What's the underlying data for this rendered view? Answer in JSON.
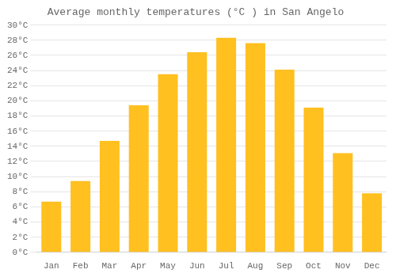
{
  "chart_data": {
    "type": "bar",
    "title": "Average monthly temperatures (°C ) in San Angelo",
    "categories": [
      "Jan",
      "Feb",
      "Mar",
      "Apr",
      "May",
      "Jun",
      "Jul",
      "Aug",
      "Sep",
      "Oct",
      "Nov",
      "Dec"
    ],
    "values": [
      6.7,
      9.4,
      14.7,
      19.4,
      23.5,
      26.4,
      28.3,
      27.6,
      24.1,
      19.1,
      13.1,
      7.8
    ],
    "color": "#FFC020",
    "ylim": [
      0,
      30
    ],
    "yticks": [
      {
        "value": 0,
        "label": "0°C"
      },
      {
        "value": 2,
        "label": "2°C"
      },
      {
        "value": 4,
        "label": "4°C"
      },
      {
        "value": 6,
        "label": "6°C"
      },
      {
        "value": 8,
        "label": "8°C"
      },
      {
        "value": 10,
        "label": "10°C"
      },
      {
        "value": 12,
        "label": "12°C"
      },
      {
        "value": 14,
        "label": "14°C"
      },
      {
        "value": 16,
        "label": "16°C"
      },
      {
        "value": 18,
        "label": "18°C"
      },
      {
        "value": 20,
        "label": "20°C"
      },
      {
        "value": 22,
        "label": "22°C"
      },
      {
        "value": 24,
        "label": "24°C"
      },
      {
        "value": 26,
        "label": "26°C"
      },
      {
        "value": 28,
        "label": "28°C"
      },
      {
        "value": 30,
        "label": "30°C"
      }
    ],
    "grid": true
  }
}
